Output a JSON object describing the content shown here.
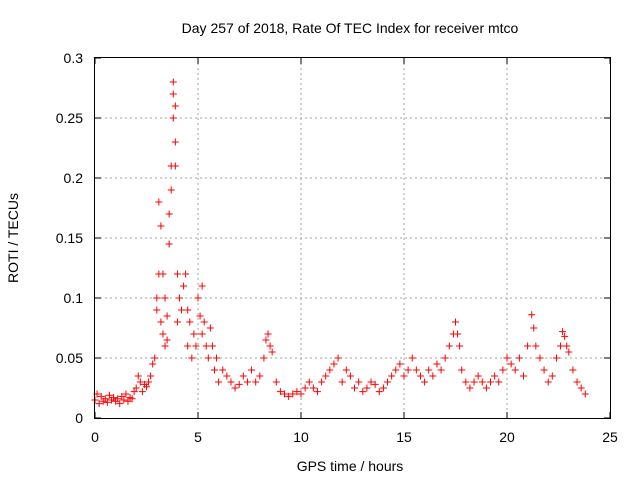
{
  "chart_data": {
    "type": "scatter",
    "title": "Day 257 of 2018, Rate Of TEC Index for receiver mtco",
    "xlabel": "GPS time / hours",
    "ylabel": "ROTI / TECUs",
    "xlim": [
      0,
      25
    ],
    "ylim": [
      0,
      0.3
    ],
    "xticks": [
      0,
      5,
      10,
      15,
      20,
      25
    ],
    "xtick_labels": [
      "0",
      "5",
      "10",
      "15",
      "20",
      "25"
    ],
    "yticks": [
      0,
      0.05,
      0.1,
      0.15,
      0.2,
      0.25,
      0.3
    ],
    "ytick_labels": [
      "0",
      "0.05",
      "0.1",
      "0.15",
      "0.2",
      "0.25",
      "0.3"
    ],
    "grid": true,
    "marker": "+",
    "marker_color": "#ff0000",
    "series": [
      {
        "name": "ROTI",
        "x": [
          0.0,
          0.1,
          0.2,
          0.3,
          0.4,
          0.5,
          0.6,
          0.7,
          0.8,
          0.9,
          1.0,
          1.1,
          1.2,
          1.3,
          1.4,
          1.5,
          1.6,
          1.7,
          1.8,
          1.9,
          2.0,
          2.1,
          2.2,
          2.3,
          2.4,
          2.5,
          2.6,
          2.7,
          2.8,
          2.9,
          3.0,
          3.0,
          3.1,
          3.1,
          3.2,
          3.2,
          3.3,
          3.3,
          3.4,
          3.4,
          3.5,
          3.5,
          3.6,
          3.6,
          3.7,
          3.7,
          3.8,
          3.8,
          3.8,
          3.9,
          3.9,
          3.9,
          4.0,
          4.0,
          4.1,
          4.2,
          4.3,
          4.4,
          4.5,
          4.5,
          4.6,
          4.7,
          4.8,
          4.9,
          5.0,
          5.1,
          5.2,
          5.2,
          5.3,
          5.4,
          5.5,
          5.6,
          5.7,
          5.8,
          5.9,
          6.0,
          6.2,
          6.4,
          6.6,
          6.8,
          7.0,
          7.2,
          7.4,
          7.6,
          7.8,
          8.0,
          8.2,
          8.3,
          8.4,
          8.5,
          8.6,
          8.8,
          9.0,
          9.2,
          9.4,
          9.6,
          9.8,
          10.0,
          10.2,
          10.4,
          10.6,
          10.8,
          11.0,
          11.2,
          11.4,
          11.6,
          11.8,
          12.0,
          12.2,
          12.4,
          12.6,
          12.8,
          13.0,
          13.2,
          13.4,
          13.6,
          13.8,
          14.0,
          14.2,
          14.4,
          14.6,
          14.8,
          15.0,
          15.2,
          15.4,
          15.6,
          15.8,
          16.0,
          16.2,
          16.4,
          16.6,
          16.8,
          17.0,
          17.2,
          17.4,
          17.5,
          17.6,
          17.7,
          17.8,
          18.0,
          18.2,
          18.4,
          18.6,
          18.8,
          19.0,
          19.2,
          19.4,
          19.6,
          19.8,
          20.0,
          20.2,
          20.4,
          20.6,
          20.8,
          21.0,
          21.2,
          21.3,
          21.4,
          21.6,
          21.8,
          22.0,
          22.2,
          22.4,
          22.6,
          22.7,
          22.8,
          22.9,
          23.0,
          23.2,
          23.4,
          23.6,
          23.8
        ],
        "y": [
          0.015,
          0.02,
          0.012,
          0.018,
          0.014,
          0.016,
          0.013,
          0.019,
          0.015,
          0.017,
          0.014,
          0.016,
          0.012,
          0.018,
          0.015,
          0.02,
          0.014,
          0.017,
          0.016,
          0.022,
          0.025,
          0.035,
          0.03,
          0.022,
          0.028,
          0.026,
          0.03,
          0.035,
          0.045,
          0.05,
          0.1,
          0.09,
          0.18,
          0.12,
          0.16,
          0.08,
          0.12,
          0.07,
          0.1,
          0.06,
          0.085,
          0.065,
          0.17,
          0.145,
          0.19,
          0.21,
          0.25,
          0.27,
          0.28,
          0.23,
          0.21,
          0.26,
          0.12,
          0.08,
          0.1,
          0.09,
          0.11,
          0.12,
          0.06,
          0.09,
          0.08,
          0.05,
          0.07,
          0.06,
          0.1,
          0.085,
          0.11,
          0.07,
          0.08,
          0.06,
          0.05,
          0.075,
          0.06,
          0.04,
          0.05,
          0.03,
          0.04,
          0.035,
          0.03,
          0.025,
          0.028,
          0.035,
          0.03,
          0.04,
          0.03,
          0.035,
          0.05,
          0.065,
          0.07,
          0.06,
          0.055,
          0.03,
          0.022,
          0.02,
          0.018,
          0.02,
          0.022,
          0.02,
          0.025,
          0.03,
          0.025,
          0.022,
          0.03,
          0.035,
          0.04,
          0.045,
          0.05,
          0.03,
          0.04,
          0.035,
          0.025,
          0.03,
          0.022,
          0.025,
          0.03,
          0.028,
          0.022,
          0.025,
          0.03,
          0.035,
          0.04,
          0.045,
          0.035,
          0.04,
          0.05,
          0.04,
          0.035,
          0.03,
          0.04,
          0.035,
          0.045,
          0.04,
          0.05,
          0.06,
          0.07,
          0.08,
          0.07,
          0.06,
          0.04,
          0.03,
          0.025,
          0.03,
          0.035,
          0.03,
          0.025,
          0.03,
          0.035,
          0.03,
          0.04,
          0.05,
          0.045,
          0.04,
          0.05,
          0.035,
          0.06,
          0.086,
          0.075,
          0.06,
          0.05,
          0.04,
          0.03,
          0.035,
          0.05,
          0.06,
          0.072,
          0.068,
          0.06,
          0.055,
          0.04,
          0.03,
          0.025,
          0.02
        ]
      }
    ]
  }
}
